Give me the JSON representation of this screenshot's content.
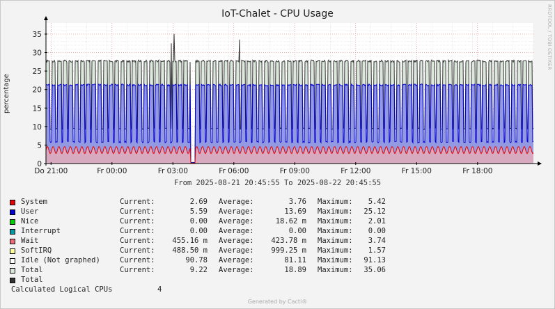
{
  "watermark": "RRDTOOL / TOBI OETIKER",
  "footer": "Generated by Cacti®",
  "range_text": "From 2025-08-21 20:45:55 To 2025-08-22 20:45:55",
  "logical_cpus": {
    "label": "Calculated Logical CPUs",
    "value": "4"
  },
  "legend_headers": {
    "current": "Current:",
    "average": "Average:",
    "maximum": "Maximum:"
  },
  "legend": [
    {
      "name": "System",
      "color": "#ea0000",
      "current": "2.69",
      "average": "3.76",
      "maximum": "5.42"
    },
    {
      "name": "User",
      "color": "#0000d6",
      "current": "5.59",
      "average": "13.69",
      "maximum": "25.12"
    },
    {
      "name": "Nice",
      "color": "#00d200",
      "current": "0.00",
      "average": "18.62 m",
      "maximum": "2.01"
    },
    {
      "name": "Interrupt",
      "color": "#009ba5",
      "current": "0.00",
      "average": "0.00",
      "maximum": "0.00"
    },
    {
      "name": "Wait",
      "color": "#f06a7a",
      "current": "455.16 m",
      "average": "423.78 m",
      "maximum": "3.74"
    },
    {
      "name": "SoftIRQ",
      "color": "#ffff99",
      "current": "488.50 m",
      "average": "999.25 m",
      "maximum": "1.57"
    },
    {
      "name": "Idle (Not graphed)",
      "color": "#ffffff",
      "current": "90.78",
      "average": "81.11",
      "maximum": "91.13"
    },
    {
      "name": "Total",
      "color": "#dce8dc",
      "current": "9.22",
      "average": "18.89",
      "maximum": "35.06"
    },
    {
      "name": "Total",
      "color": "#333333"
    }
  ],
  "chart_data": {
    "type": "area",
    "title": "IoT-Chalet - CPU Usage",
    "ylabel": "percentage",
    "xlabel": "",
    "ylim": [
      0,
      38
    ],
    "yticks": [
      0,
      5,
      10,
      15,
      20,
      25,
      30,
      35
    ],
    "x_ticks": [
      "Do 21:00",
      "Fr 00:00",
      "Fr 03:00",
      "Fr 06:00",
      "Fr 09:00",
      "Fr 12:00",
      "Fr 15:00",
      "Fr 18:00"
    ],
    "x_hours_offset": [
      0.25,
      3.25,
      6.25,
      9.25,
      12.25,
      15.25,
      18.25,
      21.25
    ],
    "x_span_hours": 24,
    "grid": true,
    "pattern": "periodic load bursts roughly every 20 minutes",
    "series": [
      {
        "name": "System",
        "color": "#ea0000",
        "low": 2.7,
        "high": 4.6
      },
      {
        "name": "User",
        "color": "#0000d6",
        "low": 5.6,
        "high": 21.5
      },
      {
        "name": "Total",
        "color": "#333333",
        "low": 9.2,
        "high": 28.0,
        "peak": 35.06
      }
    ]
  }
}
